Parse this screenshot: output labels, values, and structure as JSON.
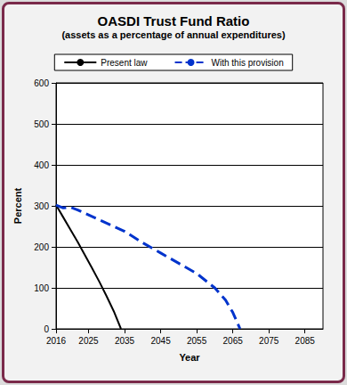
{
  "chart_data": {
    "type": "line",
    "title": "OASDI Trust Fund Ratio",
    "subtitle": "(assets as a percentage of annual expenditures)",
    "x_label": "Year",
    "y_label": "Percent",
    "xlim": [
      2016,
      2090
    ],
    "xticks": [
      2016,
      2025,
      2035,
      2045,
      2055,
      2065,
      2075,
      2085
    ],
    "ylim": [
      0,
      600
    ],
    "yticks": [
      0,
      100,
      200,
      300,
      400,
      500,
      600
    ],
    "grid": true,
    "legend": "top",
    "series": [
      {
        "name": "Present law",
        "color": "#000000",
        "line_style": "solid",
        "x": [
          2016,
          2018,
          2020,
          2022,
          2024,
          2026,
          2028,
          2030,
          2032,
          2034
        ],
        "values": [
          302,
          272,
          242,
          212,
          180,
          148,
          115,
          80,
          43,
          0
        ]
      },
      {
        "name": "With this provision",
        "color": "#0033cc",
        "line_style": "dashed",
        "x": [
          2016,
          2018,
          2020,
          2022,
          2025,
          2030,
          2035,
          2040,
          2045,
          2050,
          2055,
          2060,
          2063,
          2065,
          2067
        ],
        "values": [
          302,
          295,
          297,
          290,
          278,
          258,
          238,
          210,
          185,
          160,
          135,
          100,
          70,
          40,
          0
        ]
      }
    ]
  }
}
